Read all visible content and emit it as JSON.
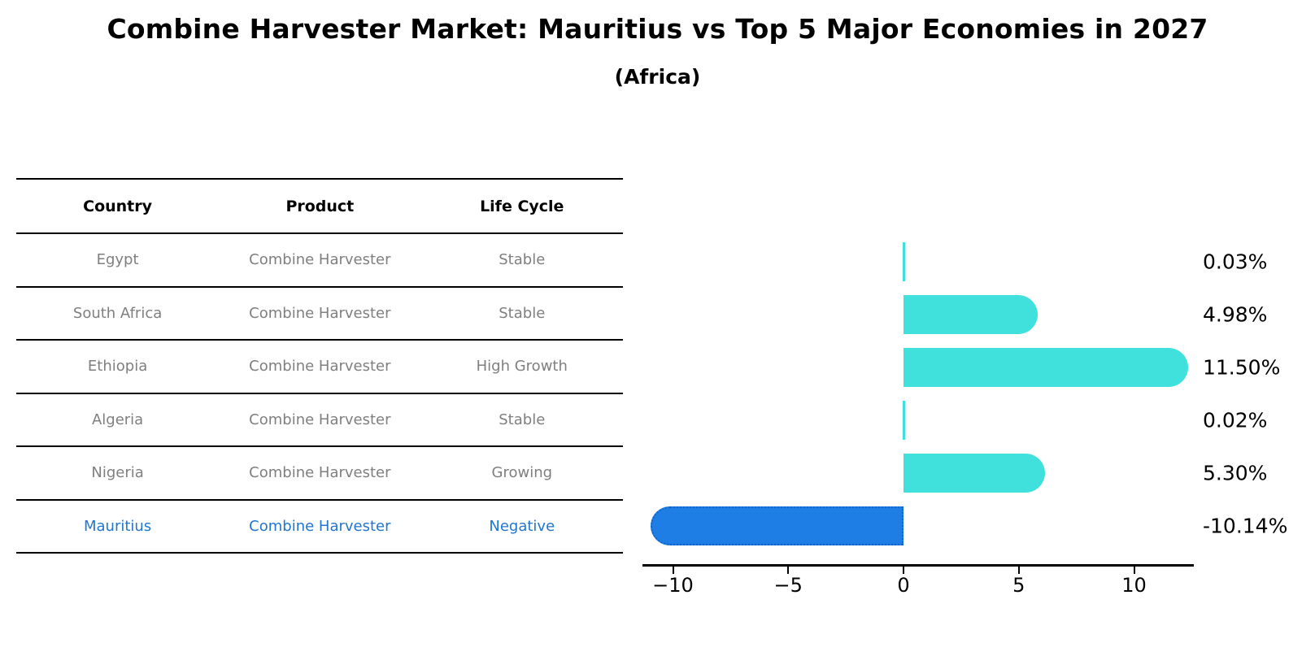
{
  "title": "Combine Harvester Market: Mauritius vs Top 5 Major Economies in 2027",
  "subtitle": "(Africa)",
  "table": {
    "headers": [
      "Country",
      "Product",
      "Life Cycle"
    ],
    "rows": [
      {
        "country": "Egypt",
        "product": "Combine Harvester",
        "life_cycle": "Stable",
        "highlight": false
      },
      {
        "country": "South Africa",
        "product": "Combine Harvester",
        "life_cycle": "Stable",
        "highlight": false
      },
      {
        "country": "Ethiopia",
        "product": "Combine Harvester",
        "life_cycle": "High Growth",
        "highlight": false
      },
      {
        "country": "Algeria",
        "product": "Combine Harvester",
        "life_cycle": "Stable",
        "highlight": false
      },
      {
        "country": "Nigeria",
        "product": "Combine Harvester",
        "life_cycle": "Growing",
        "highlight": false
      },
      {
        "country": "Mauritius",
        "product": "Combine Harvester",
        "life_cycle": "Negative",
        "highlight": true
      }
    ]
  },
  "chart_data": {
    "type": "bar",
    "orientation": "horizontal",
    "title": "Combine Harvester Market: Mauritius vs Top 5 Major Economies in 2027",
    "subtitle": "(Africa)",
    "categories": [
      "Egypt",
      "South Africa",
      "Ethiopia",
      "Algeria",
      "Nigeria",
      "Mauritius"
    ],
    "values": [
      0.03,
      4.98,
      11.5,
      0.02,
      5.3,
      -10.14
    ],
    "value_labels": [
      "0.03%",
      "4.98%",
      "11.50%",
      "0.02%",
      "5.30%",
      "-10.14%"
    ],
    "xlabel": "",
    "ylabel": "",
    "xlim": [
      -11.3,
      12.6
    ],
    "xticks": [
      -10,
      -5,
      0,
      5,
      10
    ],
    "xtick_labels": [
      "−10",
      "−5",
      "0",
      "5",
      "10"
    ],
    "bar_color": "#40E0DC",
    "highlight_color": "#1E7EE5",
    "highlight_index": 5,
    "grid": false,
    "legend": "none"
  }
}
